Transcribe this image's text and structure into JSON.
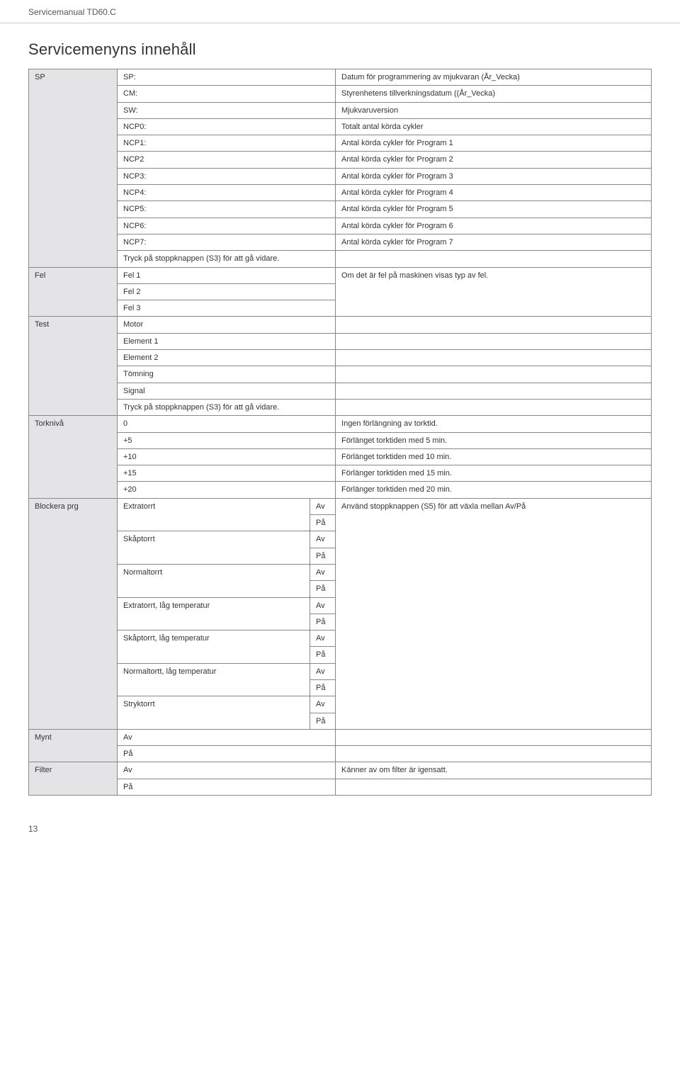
{
  "header": {
    "doc_title": "Servicemanual TD60.C"
  },
  "title": "Servicemenyns innehåll",
  "page_number": "13",
  "colors": {
    "group_bg": "#e4e4e6",
    "border": "#888888",
    "text": "#333333"
  },
  "sp": {
    "label": "SP",
    "rows": [
      {
        "k": "SP:",
        "v": "Datum för programmering av mjukvaran (År_Vecka)"
      },
      {
        "k": "CM:",
        "v": "Styrenhetens tillverkningsdatum ((År_Vecka)"
      },
      {
        "k": "SW:",
        "v": "Mjukvaruversion"
      },
      {
        "k": "NCP0:",
        "v": "Totalt antal körda cykler"
      },
      {
        "k": "NCP1:",
        "v": "Antal körda cykler för Program 1"
      },
      {
        "k": "NCP2",
        "v": "Antal körda cykler för Program 2"
      },
      {
        "k": "NCP3:",
        "v": "Antal körda cykler för Program 3"
      },
      {
        "k": "NCP4:",
        "v": "Antal körda cykler för Program 4"
      },
      {
        "k": "NCP5:",
        "v": "Antal körda cykler för Program 5"
      },
      {
        "k": "NCP6:",
        "v": "Antal körda cykler för Program 6"
      },
      {
        "k": "NCP7:",
        "v": "Antal körda cykler för Program 7"
      },
      {
        "k": "Tryck på stoppknappen (S3) för att gå vidare.",
        "v": ""
      }
    ]
  },
  "fel": {
    "label": "Fel",
    "desc": "Om det är fel på maskinen visas typ av fel.",
    "r0": "Fel 1",
    "r1": "Fel 2",
    "r2": "Fel 3"
  },
  "test": {
    "label": "Test",
    "rows": [
      "Motor",
      "Element 1",
      "Element 2",
      "Tömning",
      "Signal",
      "Tryck på stoppknappen (S3) för att gå vidare."
    ]
  },
  "tork": {
    "label": "Torknivå",
    "rows": [
      {
        "k": "0",
        "v": "Ingen förlängning av torktid."
      },
      {
        "k": "+5",
        "v": "Förlänget torktiden med 5 min."
      },
      {
        "k": "+10",
        "v": "Förlänget torktiden med 10 min."
      },
      {
        "k": "+15",
        "v": "Förlänger torktiden med 15 min."
      },
      {
        "k": "+20",
        "v": "Förlänger torktiden med 20 min."
      }
    ]
  },
  "blockera": {
    "label": "Blockera prg",
    "desc": "Använd stoppknappen (S5) för att växla mellan Av/På",
    "progs": [
      "Extratorrt",
      "Skåptorrt",
      "Normaltorrt",
      "Extratorrt, låg temperatur",
      "Skåptorrt, låg temperatur",
      "Normaltortt, låg temperatur",
      "Stryktorrt"
    ],
    "av": "Av",
    "pa": "På"
  },
  "mynt": {
    "label": "Mynt",
    "av": "Av",
    "pa": "På"
  },
  "filter": {
    "label": "Filter",
    "av": "Av",
    "pa": "På",
    "desc": "Känner av om filter är igensatt."
  }
}
